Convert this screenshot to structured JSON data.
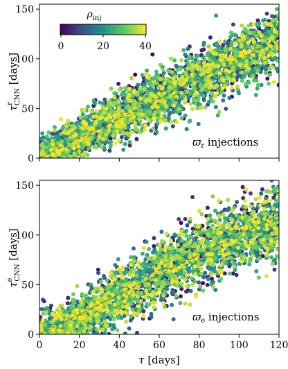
{
  "colors": {
    "colormap": [
      "#440154",
      "#3b528b",
      "#21918c",
      "#5ec962",
      "#fde725"
    ],
    "one_to_one_line": "#555555",
    "axes": "#000000",
    "background": "#ffffff"
  },
  "colorbar": {
    "label": "ρ_inj",
    "label_main": "ρ",
    "label_sub": "inj",
    "ticks": [
      "0",
      "20",
      "40"
    ],
    "range": [
      0,
      40
    ]
  },
  "chart_data": [
    {
      "type": "scatter",
      "panel": "top",
      "title": "",
      "annotation": "ϖ_r injections",
      "annotation_symbol": "ϖ",
      "annotation_sub": "r",
      "annotation_text": " injections",
      "xlabel": "",
      "ylabel": "τ^r_CNN [days]",
      "ylabel_main": "τ",
      "ylabel_sup": "r",
      "ylabel_sub": "CNN",
      "ylabel_rest": " [days]",
      "xlim": [
        0,
        120
      ],
      "ylim": [
        0,
        155
      ],
      "xticks": [
        "0",
        "20",
        "40",
        "60",
        "80",
        "100",
        "120"
      ],
      "yticks": [
        "0",
        "50",
        "100",
        "150"
      ],
      "show_xtick_labels": false,
      "color_variable": "ρ_inj",
      "reference_line": "y = x",
      "trend": [
        [
          0,
          4
        ],
        [
          20,
          22
        ],
        [
          40,
          42
        ],
        [
          60,
          62
        ],
        [
          80,
          82
        ],
        [
          100,
          100
        ],
        [
          120,
          118
        ]
      ],
      "spread_sd": 15,
      "n_points": 2600,
      "sample_points": [
        [
          5,
          10
        ],
        [
          10,
          20
        ],
        [
          20,
          23
        ],
        [
          30,
          32
        ],
        [
          40,
          44
        ],
        [
          50,
          52
        ],
        [
          60,
          63
        ],
        [
          70,
          72
        ],
        [
          80,
          84
        ],
        [
          90,
          92
        ],
        [
          100,
          100
        ],
        [
          110,
          112
        ],
        [
          118,
          125
        ]
      ]
    },
    {
      "type": "scatter",
      "panel": "bottom",
      "title": "",
      "annotation": "ϖ_e injections",
      "annotation_symbol": "ϖ",
      "annotation_sub": "e",
      "annotation_text": " injections",
      "xlabel": "τ [days]",
      "xlabel_main": "τ",
      "xlabel_rest": " [days]",
      "ylabel": "τ^e_CNN [days]",
      "ylabel_main": "τ",
      "ylabel_sup": "e",
      "ylabel_sub": "CNN",
      "ylabel_rest": " [days]",
      "xlim": [
        0,
        120
      ],
      "ylim": [
        0,
        155
      ],
      "xticks": [
        "0",
        "20",
        "40",
        "60",
        "80",
        "100",
        "120"
      ],
      "yticks": [
        "0",
        "50",
        "100",
        "150"
      ],
      "show_xtick_labels": true,
      "color_variable": "ρ_inj",
      "reference_line": "y = x",
      "trend": [
        [
          0,
          2
        ],
        [
          20,
          16
        ],
        [
          40,
          38
        ],
        [
          60,
          60
        ],
        [
          80,
          82
        ],
        [
          100,
          100
        ],
        [
          120,
          112
        ]
      ],
      "spread_sd": 17,
      "n_points": 2600,
      "sample_points": [
        [
          5,
          6
        ],
        [
          10,
          12
        ],
        [
          20,
          18
        ],
        [
          30,
          28
        ],
        [
          40,
          40
        ],
        [
          50,
          50
        ],
        [
          60,
          60
        ],
        [
          70,
          72
        ],
        [
          80,
          82
        ],
        [
          90,
          90
        ],
        [
          100,
          100
        ],
        [
          110,
          105
        ],
        [
          118,
          110
        ]
      ]
    }
  ]
}
